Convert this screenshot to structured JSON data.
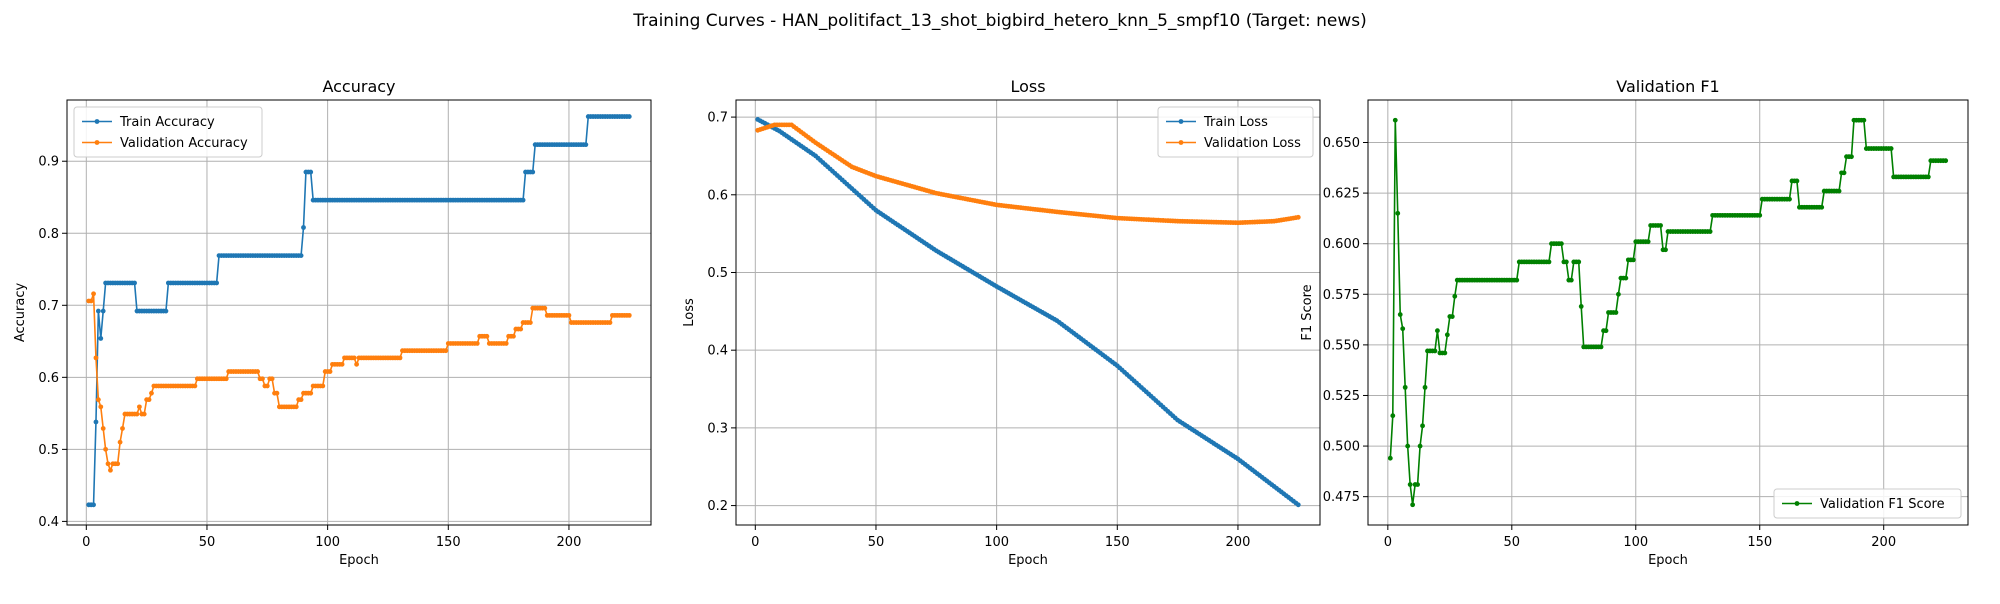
{
  "figure": {
    "title": "Training Curves - HAN_politifact_13_shot_bigbird_hetero_knn_5_smpf10 (Target: news)"
  },
  "colors": {
    "blue": "#1f77b4",
    "orange": "#ff7f0e",
    "green": "#008000",
    "grid": "#b0b0b0"
  },
  "chart_data": [
    {
      "type": "line",
      "title": "Accuracy",
      "xlabel": "Epoch",
      "ylabel": "Accuracy",
      "xlim": [
        -8,
        234
      ],
      "ylim": [
        0.395,
        0.985
      ],
      "xticks": [
        0,
        50,
        100,
        150,
        200
      ],
      "yticks": [
        0.4,
        0.5,
        0.6,
        0.7,
        0.8,
        0.9
      ],
      "ytick_decimals": 1,
      "grid": true,
      "legend": "upper left",
      "series": [
        {
          "name": "Train Accuracy",
          "color": "#1f77b4",
          "steps": [
            [
              1,
              0.423
            ],
            [
              4,
              0.538
            ],
            [
              5,
              0.692
            ],
            [
              6,
              0.654
            ],
            [
              7,
              0.692
            ],
            [
              8,
              0.731
            ],
            [
              21,
              0.692
            ],
            [
              34,
              0.731
            ],
            [
              55,
              0.769
            ],
            [
              90,
              0.808
            ],
            [
              91,
              0.885
            ],
            [
              94,
              0.846
            ],
            [
              182,
              0.885
            ],
            [
              186,
              0.923
            ],
            [
              208,
              0.962
            ],
            [
              225,
              0.962
            ]
          ]
        },
        {
          "name": "Validation Accuracy",
          "color": "#ff7f0e",
          "steps": [
            [
              1,
              0.706
            ],
            [
              3,
              0.716
            ],
            [
              4,
              0.627
            ],
            [
              5,
              0.569
            ],
            [
              6,
              0.559
            ],
            [
              7,
              0.529
            ],
            [
              8,
              0.5
            ],
            [
              9,
              0.48
            ],
            [
              10,
              0.471
            ],
            [
              11,
              0.48
            ],
            [
              14,
              0.51
            ],
            [
              15,
              0.529
            ],
            [
              16,
              0.549
            ],
            [
              22,
              0.559
            ],
            [
              23,
              0.549
            ],
            [
              25,
              0.569
            ],
            [
              27,
              0.578
            ],
            [
              28,
              0.588
            ],
            [
              46,
              0.598
            ],
            [
              59,
              0.608
            ],
            [
              72,
              0.598
            ],
            [
              74,
              0.588
            ],
            [
              76,
              0.598
            ],
            [
              78,
              0.578
            ],
            [
              80,
              0.559
            ],
            [
              88,
              0.569
            ],
            [
              90,
              0.578
            ],
            [
              94,
              0.588
            ],
            [
              99,
              0.608
            ],
            [
              102,
              0.618
            ],
            [
              107,
              0.627
            ],
            [
              112,
              0.618
            ],
            [
              113,
              0.627
            ],
            [
              131,
              0.637
            ],
            [
              150,
              0.647
            ],
            [
              163,
              0.657
            ],
            [
              167,
              0.647
            ],
            [
              175,
              0.657
            ],
            [
              178,
              0.667
            ],
            [
              181,
              0.676
            ],
            [
              185,
              0.696
            ],
            [
              191,
              0.686
            ],
            [
              201,
              0.676
            ],
            [
              218,
              0.686
            ],
            [
              225,
              0.686
            ]
          ]
        }
      ]
    },
    {
      "type": "line",
      "title": "Loss",
      "xlabel": "Epoch",
      "ylabel": "Loss",
      "xlim": [
        -8,
        234
      ],
      "ylim": [
        0.175,
        0.722
      ],
      "xticks": [
        0,
        50,
        100,
        150,
        200
      ],
      "yticks": [
        0.2,
        0.3,
        0.4,
        0.5,
        0.6,
        0.7
      ],
      "ytick_decimals": 1,
      "grid": true,
      "legend": "upper right",
      "series": [
        {
          "name": "Train Loss",
          "color": "#1f77b4",
          "curve": [
            [
              1,
              0.697
            ],
            [
              10,
              0.682
            ],
            [
              25,
              0.65
            ],
            [
              50,
              0.58
            ],
            [
              75,
              0.528
            ],
            [
              100,
              0.482
            ],
            [
              125,
              0.438
            ],
            [
              150,
              0.38
            ],
            [
              175,
              0.31
            ],
            [
              200,
              0.26
            ],
            [
              225,
              0.201
            ]
          ]
        },
        {
          "name": "Validation Loss",
          "color": "#ff7f0e",
          "curve": [
            [
              1,
              0.683
            ],
            [
              8,
              0.69
            ],
            [
              15,
              0.69
            ],
            [
              25,
              0.667
            ],
            [
              40,
              0.636
            ],
            [
              50,
              0.624
            ],
            [
              75,
              0.602
            ],
            [
              100,
              0.587
            ],
            [
              125,
              0.578
            ],
            [
              150,
              0.57
            ],
            [
              175,
              0.566
            ],
            [
              200,
              0.564
            ],
            [
              215,
              0.566
            ],
            [
              225,
              0.571
            ]
          ]
        }
      ]
    },
    {
      "type": "line",
      "title": "Validation F1",
      "xlabel": "Epoch",
      "ylabel": "F1 Score",
      "xlim": [
        -8,
        234
      ],
      "ylim": [
        0.461,
        0.671
      ],
      "xticks": [
        0,
        50,
        100,
        150,
        200
      ],
      "yticks": [
        0.475,
        0.5,
        0.525,
        0.55,
        0.575,
        0.6,
        0.625,
        0.65
      ],
      "ytick_decimals": 3,
      "grid": true,
      "legend": "lower right",
      "series": [
        {
          "name": "Validation F1 Score",
          "color": "#008000",
          "steps": [
            [
              1,
              0.494
            ],
            [
              2,
              0.515
            ],
            [
              3,
              0.661
            ],
            [
              4,
              0.615
            ],
            [
              5,
              0.565
            ],
            [
              6,
              0.558
            ],
            [
              7,
              0.529
            ],
            [
              8,
              0.5
            ],
            [
              9,
              0.481
            ],
            [
              10,
              0.471
            ],
            [
              11,
              0.481
            ],
            [
              13,
              0.5
            ],
            [
              14,
              0.51
            ],
            [
              15,
              0.529
            ],
            [
              16,
              0.547
            ],
            [
              20,
              0.557
            ],
            [
              21,
              0.546
            ],
            [
              24,
              0.555
            ],
            [
              25,
              0.564
            ],
            [
              27,
              0.574
            ],
            [
              28,
              0.582
            ],
            [
              53,
              0.591
            ],
            [
              66,
              0.6
            ],
            [
              71,
              0.591
            ],
            [
              73,
              0.582
            ],
            [
              75,
              0.591
            ],
            [
              78,
              0.569
            ],
            [
              79,
              0.549
            ],
            [
              87,
              0.557
            ],
            [
              89,
              0.566
            ],
            [
              93,
              0.575
            ],
            [
              94,
              0.583
            ],
            [
              97,
              0.592
            ],
            [
              100,
              0.601
            ],
            [
              106,
              0.609
            ],
            [
              111,
              0.597
            ],
            [
              113,
              0.606
            ],
            [
              131,
              0.614
            ],
            [
              151,
              0.622
            ],
            [
              163,
              0.631
            ],
            [
              166,
              0.618
            ],
            [
              176,
              0.626
            ],
            [
              183,
              0.635
            ],
            [
              185,
              0.643
            ],
            [
              188,
              0.661
            ],
            [
              193,
              0.647
            ],
            [
              204,
              0.633
            ],
            [
              219,
              0.641
            ],
            [
              225,
              0.641
            ]
          ]
        }
      ]
    }
  ]
}
